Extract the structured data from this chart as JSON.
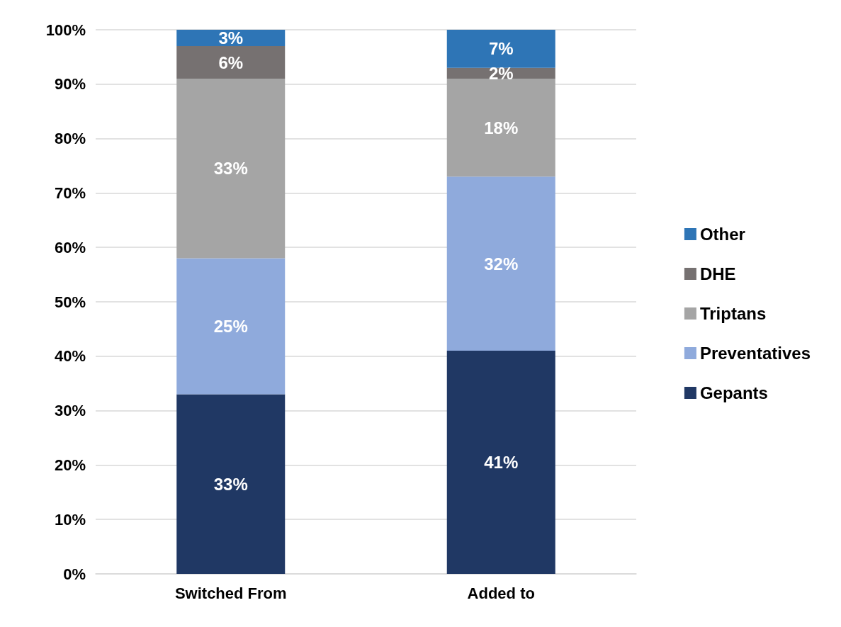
{
  "chart_data": {
    "type": "bar",
    "stacked": true,
    "categories": [
      "Switched From",
      "Added to"
    ],
    "series": [
      {
        "name": "Gepants",
        "color": "#203864",
        "values": [
          33,
          41
        ],
        "value_labels": [
          "33%",
          "41%"
        ]
      },
      {
        "name": "Preventatives",
        "color": "#8faadc",
        "values": [
          25,
          32
        ],
        "value_labels": [
          "25%",
          "32%"
        ]
      },
      {
        "name": "Triptans",
        "color": "#a5a5a5",
        "values": [
          33,
          18
        ],
        "value_labels": [
          "33%",
          "18%"
        ]
      },
      {
        "name": "DHE",
        "color": "#767171",
        "values": [
          6,
          2
        ],
        "value_labels": [
          "6%",
          "2%"
        ]
      },
      {
        "name": "Other",
        "color": "#2e75b6",
        "values": [
          3,
          7
        ],
        "value_labels": [
          "3%",
          "7%"
        ]
      }
    ],
    "ylim": [
      0,
      100
    ],
    "yticks": [
      {
        "value": 0,
        "label": "0%"
      },
      {
        "value": 10,
        "label": "10%"
      },
      {
        "value": 20,
        "label": "20%"
      },
      {
        "value": 30,
        "label": "30%"
      },
      {
        "value": 40,
        "label": "40%"
      },
      {
        "value": 50,
        "label": "50%"
      },
      {
        "value": 60,
        "label": "60%"
      },
      {
        "value": 70,
        "label": "70%"
      },
      {
        "value": 80,
        "label": "80%"
      },
      {
        "value": 90,
        "label": "90%"
      },
      {
        "value": 100,
        "label": "100%"
      }
    ],
    "grid": "y",
    "legend": "right"
  }
}
